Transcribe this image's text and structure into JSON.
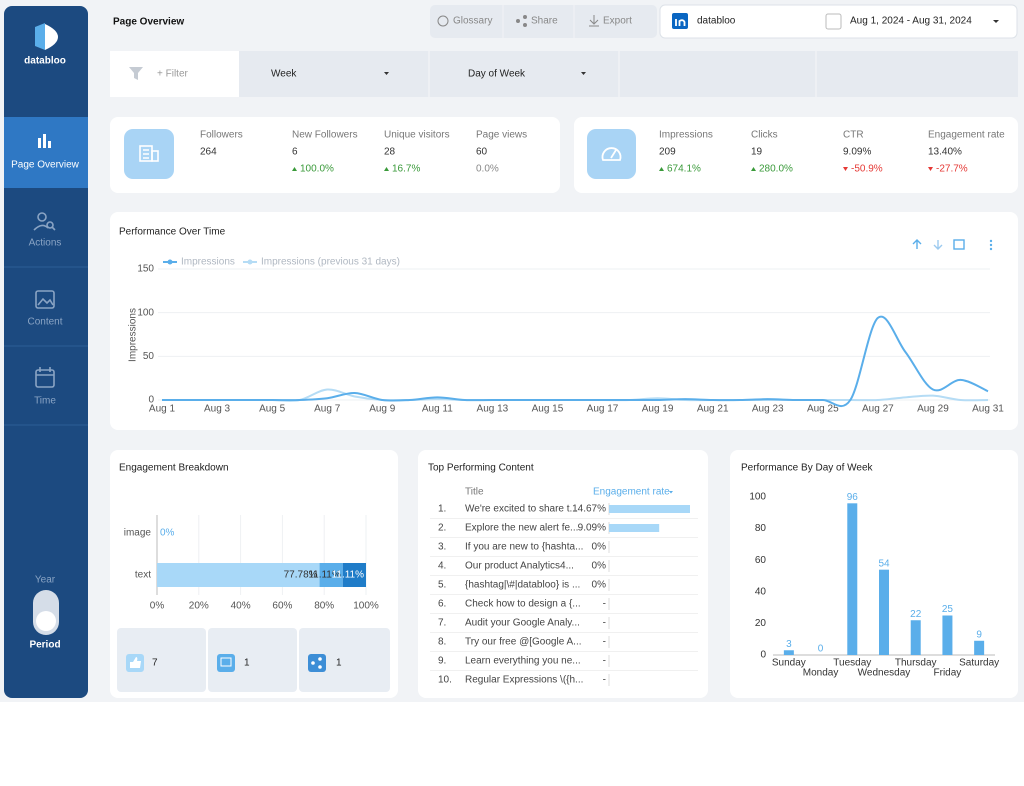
{
  "sidebar": {
    "brand": "databloo",
    "nav": [
      "Page Overview",
      "Actions",
      "Content",
      "Time"
    ],
    "toggle_label": "Year",
    "toggle_value": "Period"
  },
  "header": {
    "title": "Page Overview",
    "buttons": [
      "Glossary",
      "Share",
      "Export"
    ],
    "account": "databloo",
    "date_range": "Aug 1, 2024 - Aug 31, 2024"
  },
  "filters": [
    "+ Filter",
    "Week",
    "Day of Week"
  ],
  "kpi_groups": [
    {
      "items": [
        {
          "label": "Followers",
          "value": "264"
        },
        {
          "label": "New Followers",
          "value": "6",
          "change": "100.0%"
        },
        {
          "label": "Unique visitors",
          "value": "28",
          "change": "16.7%"
        },
        {
          "label": "Page views",
          "value": "60",
          "change": "0.0%"
        }
      ]
    },
    {
      "items": [
        {
          "label": "Impressions",
          "value": "209",
          "change": "674.1%"
        },
        {
          "label": "Clicks",
          "value": "19",
          "change": "280.0%"
        },
        {
          "label": "CTR",
          "value": "9.09%",
          "change": "-50.9%"
        },
        {
          "label": "Engagement rate",
          "value": "13.40%",
          "change": "-27.7%"
        }
      ]
    }
  ],
  "performance_over_time": {
    "type": "line",
    "title": "Performance Over Time",
    "y_label": "Impressions",
    "categories": [
      "Aug 1",
      null,
      "Aug 3",
      null,
      "Aug 5",
      null,
      "Aug 7",
      null,
      "Aug 9",
      null,
      "Aug 11",
      null,
      "Aug 13",
      null,
      "Aug 15",
      null,
      "Aug 17",
      null,
      "Aug 19",
      null,
      "Aug 21",
      null,
      "Aug 23",
      null,
      "Aug 25",
      null,
      "Aug 27",
      null,
      "Aug 29",
      null,
      "Aug 31"
    ],
    "series": [
      {
        "name": "Impressions",
        "color": "#5aaeea",
        "values": [
          0,
          0,
          0,
          0,
          0,
          0,
          2,
          8,
          0,
          0,
          3,
          0,
          0,
          0,
          0,
          0,
          0,
          0,
          0,
          1,
          0,
          0,
          1,
          0,
          0,
          0,
          94,
          55,
          12,
          23,
          10
        ]
      },
      {
        "name": "Impressions (previous 31 days)",
        "color": "#b5dcf5",
        "values": [
          0,
          0,
          0,
          0,
          0,
          0,
          12,
          4,
          0,
          0,
          1,
          0,
          0,
          0,
          0,
          0,
          0,
          0,
          2,
          0,
          0,
          0,
          0,
          0,
          0,
          0,
          0,
          3,
          5,
          0,
          0
        ]
      }
    ],
    "ylim": [
      0,
      150
    ],
    "yticks": [
      0,
      50,
      100,
      150
    ],
    "grid": true
  },
  "engagement_breakdown": {
    "type": "bar",
    "orientation": "horizontal",
    "stacked": true,
    "title": "Engagement Breakdown",
    "categories": [
      "image",
      "text"
    ],
    "series": [
      {
        "color": "#a8d8f8",
        "values": [
          0,
          77.78
        ],
        "value_labels": [
          "0%",
          "77.78%"
        ]
      },
      {
        "color": "#5aaeea",
        "values": [
          null,
          11.11
        ],
        "value_labels": [
          null,
          "11.11%"
        ]
      },
      {
        "color": "#1f7cc8",
        "values": [
          null,
          11.11
        ],
        "value_labels": [
          null,
          "11.11%"
        ]
      }
    ],
    "xlim": [
      0,
      100
    ],
    "xticks": [
      {
        "value": 0,
        "label": "0%"
      },
      {
        "value": 20,
        "label": "20%"
      },
      {
        "value": 40,
        "label": "40%"
      },
      {
        "value": 60,
        "label": "60%"
      },
      {
        "value": 80,
        "label": "80%"
      },
      {
        "value": 100,
        "label": "100%"
      }
    ],
    "grid": true,
    "totals": [
      "7",
      "1",
      "1"
    ]
  },
  "top_content": {
    "title": "Top Performing Content",
    "columns": [
      "Title",
      "Engagement rate"
    ],
    "rows": [
      {
        "rank": "1.",
        "title": "We're excited to share t...",
        "rate": 14.67,
        "rate_label": "14.67%"
      },
      {
        "rank": "2.",
        "title": "Explore the new alert fe...",
        "rate": 9.09,
        "rate_label": "9.09%"
      },
      {
        "rank": "3.",
        "title": "If you are new to {hashta...",
        "rate": 0,
        "rate_label": "0%"
      },
      {
        "rank": "4.",
        "title": "Our product Analytics4...",
        "rate": 0,
        "rate_label": "0%"
      },
      {
        "rank": "5.",
        "title": "{hashtag|\\#|databloo} is ...",
        "rate": 0,
        "rate_label": "0%"
      },
      {
        "rank": "6.",
        "title": "Check how to design a {...",
        "rate": null,
        "rate_label": "-"
      },
      {
        "rank": "7.",
        "title": "Audit your Google Analy...",
        "rate": null,
        "rate_label": "-"
      },
      {
        "rank": "8.",
        "title": "Try our free @[Google A...",
        "rate": null,
        "rate_label": "-"
      },
      {
        "rank": "9.",
        "title": "Learn everything you ne...",
        "rate": null,
        "rate_label": "-"
      },
      {
        "rank": "10.",
        "title": "Regular Expressions \\({h...",
        "rate": null,
        "rate_label": "-"
      }
    ]
  },
  "performance_by_day": {
    "type": "bar",
    "title": "Performance By Day of Week",
    "categories": [
      "Sunday",
      "Monday",
      "Tuesday",
      "Wednesday",
      "Thursday",
      "Friday",
      "Saturday"
    ],
    "values": [
      3,
      0,
      96,
      54,
      22,
      25,
      9
    ],
    "color": "#5aaeea",
    "ylim": [
      0,
      100
    ],
    "yticks": [
      0,
      20,
      40,
      60,
      80,
      100
    ],
    "grid": false
  }
}
